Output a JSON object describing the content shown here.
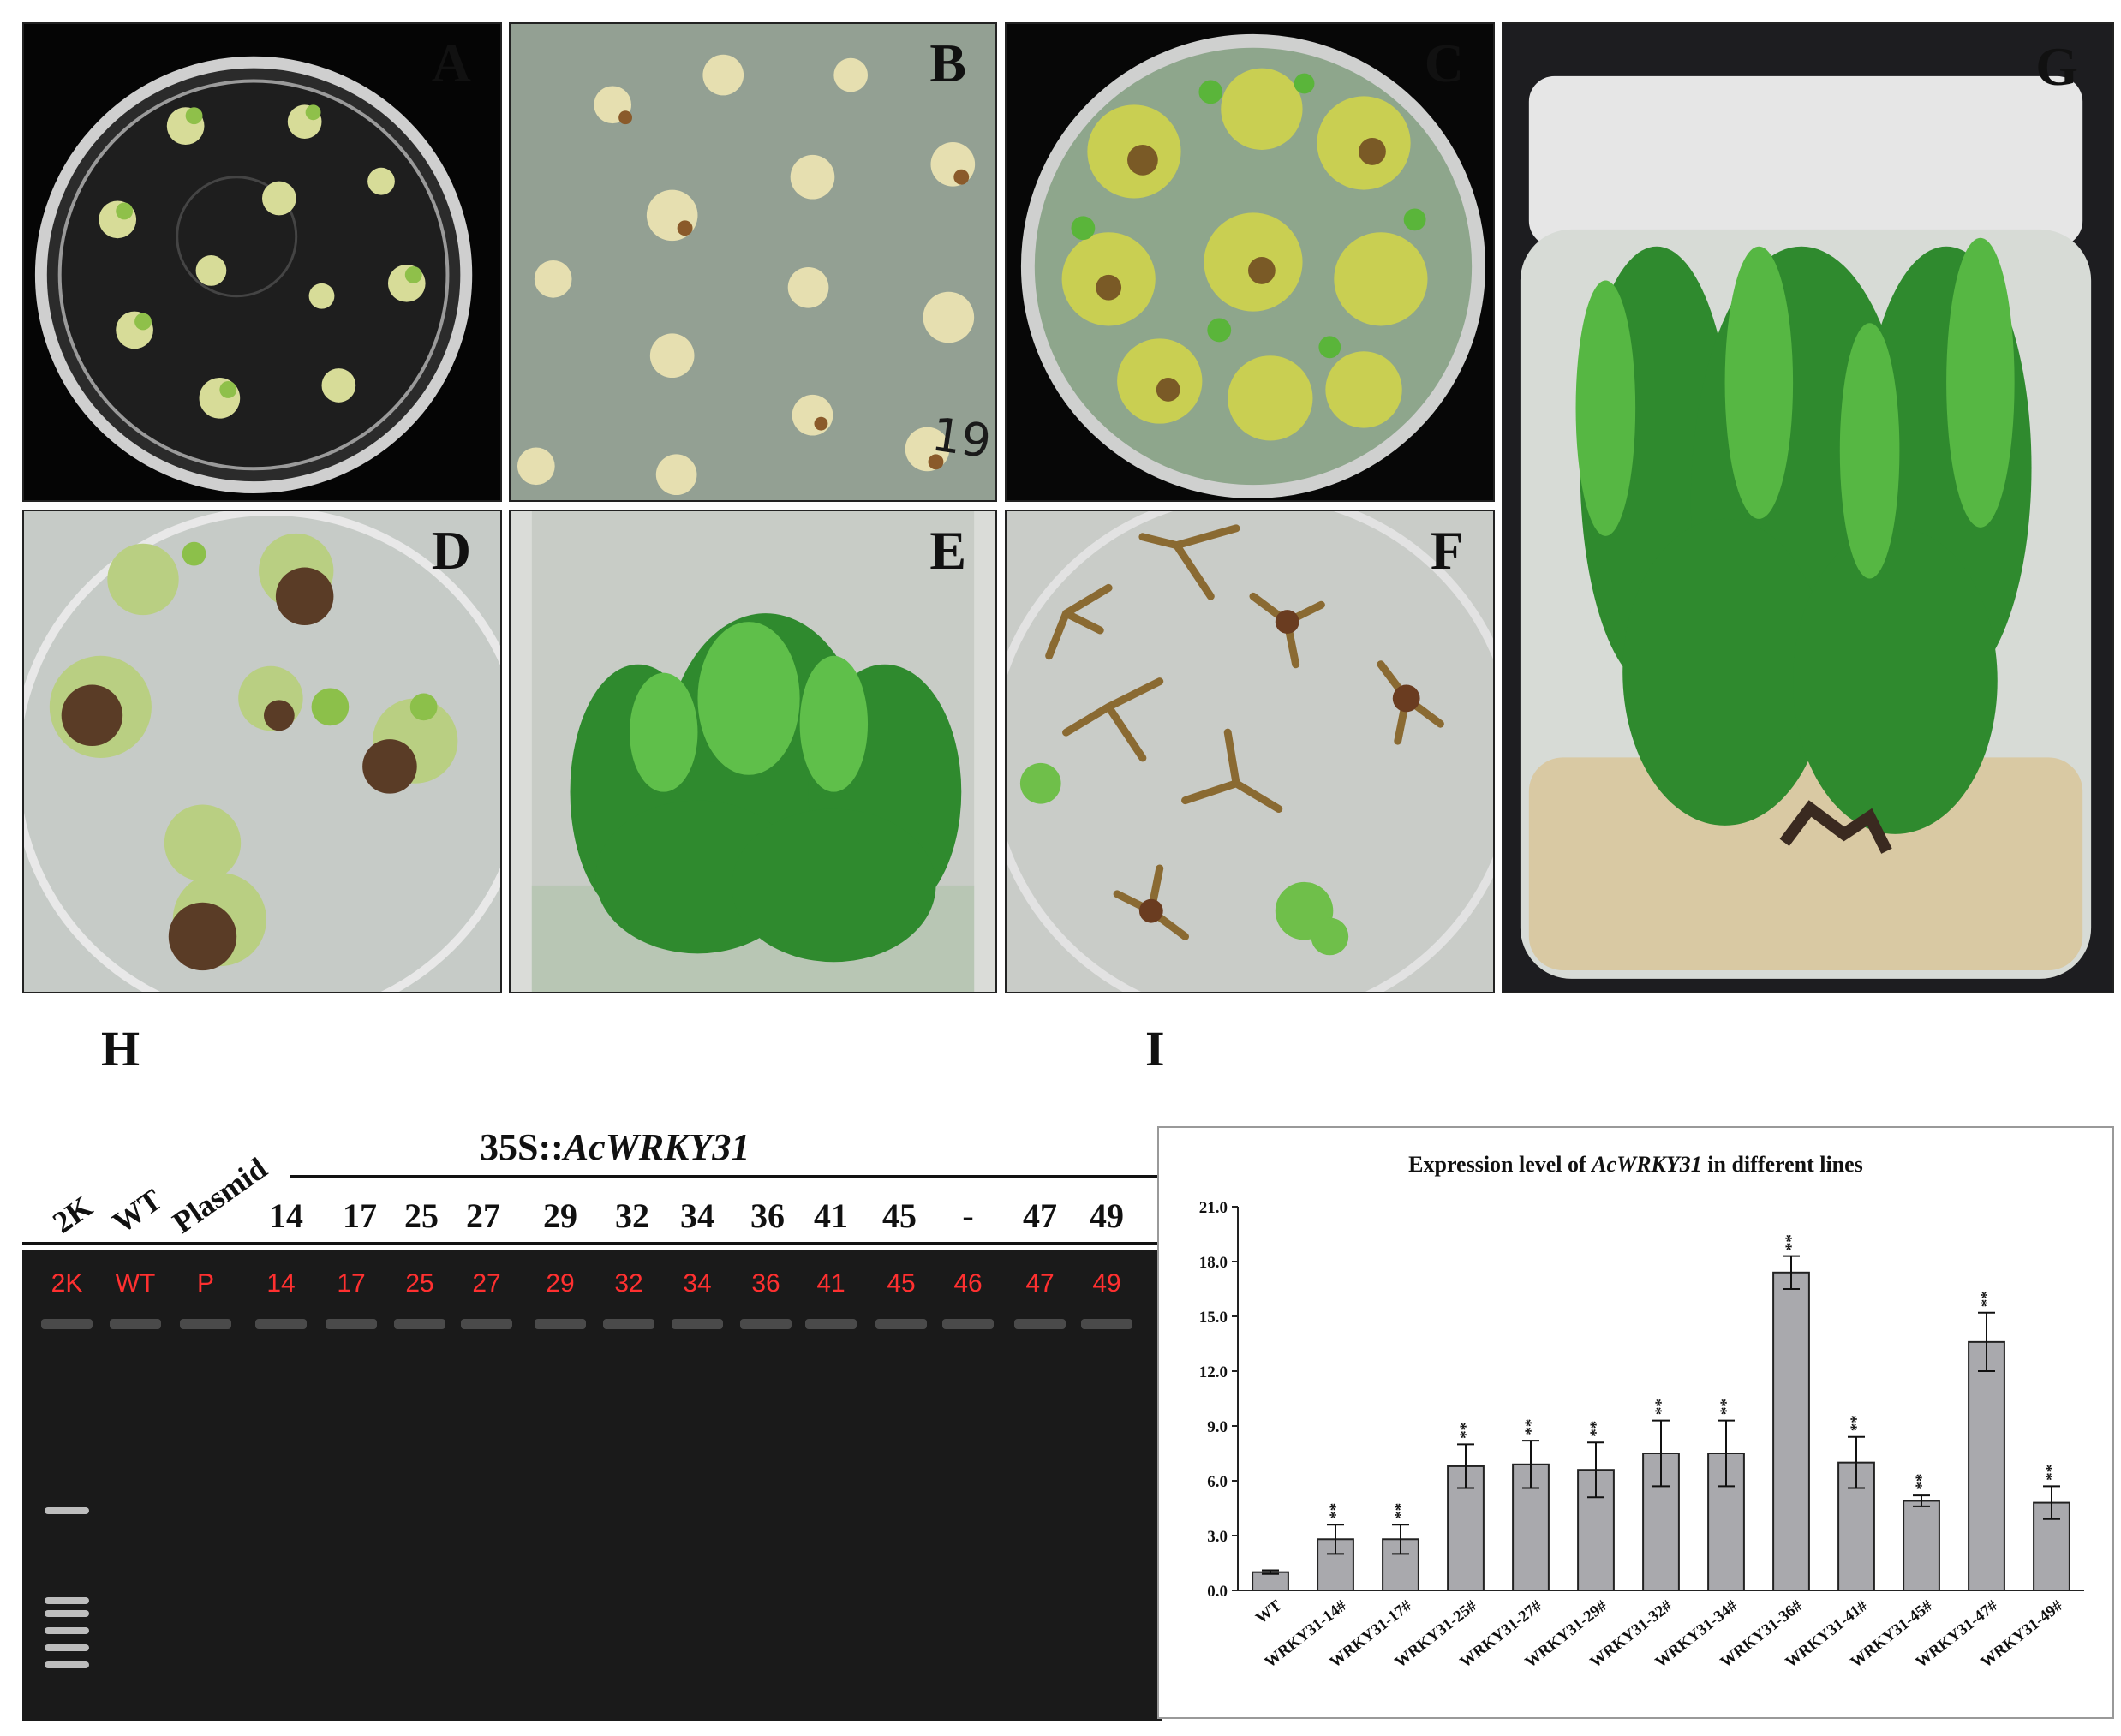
{
  "panels": {
    "A": "A",
    "B": "B",
    "C": "C",
    "D": "D",
    "E": "E",
    "F": "F",
    "G": "G",
    "plate_B_marking": "19",
    "H": "H",
    "I": "I"
  },
  "gel": {
    "header_lanes": [
      "2K",
      "WT",
      "Plasmid"
    ],
    "construct_prefix": "35S::",
    "construct_gene": "AcWRKY31",
    "lane_numbers": [
      "14",
      "17",
      "25",
      "27",
      "29",
      "32",
      "34",
      "36",
      "41",
      "45",
      "-",
      "47",
      "49"
    ],
    "red_labels": [
      "2K",
      "WT",
      "P",
      "14",
      "17",
      "25",
      "27",
      "29",
      "32",
      "34",
      "36",
      "41",
      "45",
      "46",
      "47",
      "49"
    ],
    "band_present": [
      false,
      false,
      true,
      true,
      true,
      true,
      true,
      true,
      true,
      true,
      true,
      true,
      true,
      "faint",
      true,
      true
    ]
  },
  "chart_data": {
    "type": "bar",
    "title_prefix": "Expression level of ",
    "title_gene": "AcWRKY31",
    "title_suffix": " in different lines",
    "categories": [
      "WT",
      "WRKY31-14#",
      "WRKY31-17#",
      "WRKY31-25#",
      "WRKY31-27#",
      "WRKY31-29#",
      "WRKY31-32#",
      "WRKY31-34#",
      "WRKY31-36#",
      "WRKY31-41#",
      "WRKY31-45#",
      "WRKY31-47#",
      "WRKY31-49#"
    ],
    "values": [
      1.0,
      2.8,
      2.8,
      6.8,
      6.9,
      6.6,
      7.5,
      7.5,
      17.4,
      7.0,
      4.9,
      13.6,
      4.8
    ],
    "errors": [
      0.1,
      0.8,
      0.8,
      1.2,
      1.3,
      1.5,
      1.8,
      1.8,
      0.9,
      1.4,
      0.3,
      1.6,
      0.9
    ],
    "significance": [
      "",
      "**",
      "**",
      "**",
      "**",
      "**",
      "**",
      "**",
      "**",
      "**",
      "**",
      "**",
      "**"
    ],
    "y_ticks": [
      "0.0",
      "3.0",
      "6.0",
      "9.0",
      "12.0",
      "15.0",
      "18.0",
      "21.0"
    ],
    "ylim": [
      0,
      21
    ],
    "bar_color": "#a9a9ad",
    "xlabel": "",
    "ylabel": ""
  }
}
